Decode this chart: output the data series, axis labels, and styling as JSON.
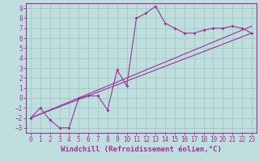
{
  "xlabel": "Windchill (Refroidissement éolien,°C)",
  "ylabel": "",
  "xlim": [
    -0.5,
    23.5
  ],
  "ylim": [
    -3.5,
    9.5
  ],
  "xticks": [
    0,
    1,
    2,
    3,
    4,
    5,
    6,
    7,
    8,
    9,
    10,
    11,
    12,
    13,
    14,
    15,
    16,
    17,
    18,
    19,
    20,
    21,
    22,
    23
  ],
  "yticks": [
    -3,
    -2,
    -1,
    0,
    1,
    2,
    3,
    4,
    5,
    6,
    7,
    8,
    9
  ],
  "bg_color": "#c0dede",
  "line_color": "#993399",
  "grid_color": "#a0c8c8",
  "line1_x": [
    0,
    1,
    2,
    3,
    4,
    5,
    6,
    7,
    8,
    9,
    10,
    11,
    12,
    13,
    14,
    15,
    16,
    17,
    18,
    19,
    20,
    21,
    22,
    23
  ],
  "line1_y": [
    -2.0,
    -1.0,
    -2.2,
    -3.0,
    -3.0,
    0.0,
    0.2,
    0.2,
    -1.2,
    2.8,
    1.2,
    8.0,
    8.5,
    9.2,
    7.5,
    7.0,
    6.5,
    6.5,
    6.8,
    7.0,
    7.0,
    7.2,
    7.0,
    6.5
  ],
  "line2_x": [
    0,
    23
  ],
  "line2_y": [
    -2.0,
    7.2
  ],
  "line3_x": [
    0,
    23
  ],
  "line3_y": [
    -2.0,
    6.5
  ],
  "xlabel_fontsize": 6.5,
  "tick_fontsize": 5.5
}
